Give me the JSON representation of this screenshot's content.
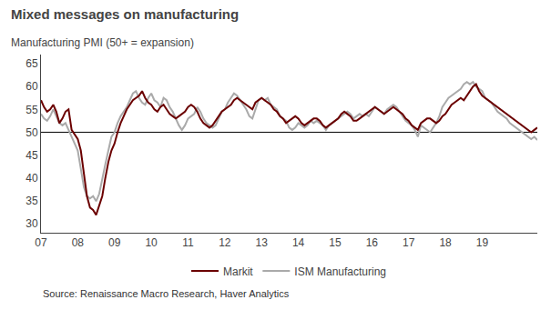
{
  "chart_data": {
    "type": "line",
    "title": "Mixed messages on manufacturing",
    "subtitle": "Manufacturing PMI (50+ = expansion)",
    "source": "Source: Renaissance Macro Research, Haver Analytics",
    "categories": [
      "07",
      null,
      null,
      null,
      null,
      null,
      null,
      null,
      null,
      null,
      null,
      null,
      "08",
      null,
      null,
      null,
      null,
      null,
      null,
      null,
      null,
      null,
      null,
      null,
      "09",
      null,
      null,
      null,
      null,
      null,
      null,
      null,
      null,
      null,
      null,
      null,
      "10",
      null,
      null,
      null,
      null,
      null,
      null,
      null,
      null,
      null,
      null,
      null,
      "11",
      null,
      null,
      null,
      null,
      null,
      null,
      null,
      null,
      null,
      null,
      null,
      "12",
      null,
      null,
      null,
      null,
      null,
      null,
      null,
      null,
      null,
      null,
      null,
      "13",
      null,
      null,
      null,
      null,
      null,
      null,
      null,
      null,
      null,
      null,
      null,
      "14",
      null,
      null,
      null,
      null,
      null,
      null,
      null,
      null,
      null,
      null,
      null,
      "15",
      null,
      null,
      null,
      null,
      null,
      null,
      null,
      null,
      null,
      null,
      null,
      "16",
      null,
      null,
      null,
      null,
      null,
      null,
      null,
      null,
      null,
      null,
      null,
      "17",
      null,
      null,
      null,
      null,
      null,
      null,
      null,
      null,
      null,
      null,
      null,
      "18",
      null,
      null,
      null,
      null,
      null,
      null,
      null,
      null,
      null,
      null,
      null,
      "19",
      null,
      null,
      null,
      null,
      null,
      null,
      null,
      null,
      null,
      null,
      null,
      null,
      null,
      null,
      null,
      null,
      null,
      null
    ],
    "series": [
      {
        "name": "ISM Manufacturing",
        "color": "#aaaaaa",
        "values": [
          54.0,
          53.0,
          52.5,
          53.5,
          55.0,
          53.5,
          52.0,
          51.5,
          52.0,
          50.5,
          49.0,
          47.5,
          46.0,
          42.0,
          38.0,
          36.0,
          35.5,
          36.0,
          34.9,
          36.5,
          40.0,
          43.0,
          46.0,
          49.0,
          50.0,
          52.0,
          53.5,
          54.5,
          55.5,
          57.0,
          58.5,
          59.0,
          57.5,
          56.5,
          56.0,
          57.5,
          58.5,
          57.0,
          56.5,
          55.5,
          57.5,
          57.0,
          55.5,
          54.5,
          53.0,
          51.5,
          50.5,
          51.5,
          53.0,
          53.5,
          54.0,
          55.5,
          54.5,
          53.0,
          52.0,
          51.5,
          51.0,
          51.5,
          53.0,
          54.5,
          55.0,
          56.5,
          57.5,
          58.5,
          58.0,
          57.0,
          56.0,
          55.0,
          53.5,
          53.0,
          55.0,
          57.0,
          57.5,
          57.0,
          57.5,
          56.0,
          55.5,
          55.0,
          53.5,
          53.0,
          52.5,
          51.0,
          50.5,
          51.0,
          52.0,
          51.5,
          51.0,
          51.5,
          52.5,
          52.0,
          52.5,
          52.0,
          51.5,
          50.5,
          51.5,
          52.0,
          52.5,
          53.0,
          53.5,
          54.0,
          54.5,
          54.0,
          53.0,
          53.5,
          54.0,
          53.5,
          54.0,
          53.5,
          54.5,
          55.5,
          55.0,
          54.5,
          54.0,
          55.0,
          55.5,
          56.0,
          55.5,
          54.5,
          53.5,
          52.5,
          52.0,
          51.5,
          50.5,
          49.0,
          51.5,
          51.0,
          50.5,
          50.0,
          51.0,
          52.0,
          53.5,
          55.5,
          56.5,
          57.5,
          58.0,
          58.5,
          59.0,
          59.5,
          60.5,
          61.0,
          60.5,
          61.0,
          60.0,
          59.5,
          59.0,
          57.5,
          57.0,
          56.5,
          55.5,
          54.5,
          54.0,
          53.5,
          53.0,
          52.0,
          51.5,
          51.0,
          50.5,
          50.0,
          49.5,
          49.0,
          48.5,
          49.0,
          48.3
        ]
      },
      {
        "name": "Markit",
        "color": "#6B0000",
        "values": [
          57.0,
          55.5,
          54.5,
          55.0,
          56.0,
          54.5,
          52.0,
          53.0,
          54.5,
          55.0,
          50.5,
          49.5,
          48.5,
          46.0,
          41.0,
          36.0,
          33.5,
          33.0,
          31.9,
          34.0,
          36.0,
          40.0,
          43.5,
          46.0,
          47.5,
          50.0,
          52.0,
          53.5,
          55.0,
          56.0,
          57.0,
          57.5,
          58.0,
          59.0,
          57.5,
          56.5,
          56.0,
          55.0,
          54.5,
          55.5,
          56.0,
          55.0,
          54.0,
          53.5,
          53.0,
          53.5,
          54.0,
          54.5,
          55.5,
          56.0,
          55.5,
          54.5,
          53.0,
          52.0,
          51.5,
          51.0,
          51.5,
          52.5,
          53.5,
          54.5,
          55.0,
          55.5,
          56.0,
          57.0,
          57.5,
          57.0,
          56.5,
          56.0,
          55.5,
          55.0,
          56.5,
          57.0,
          57.5,
          57.0,
          56.5,
          56.0,
          55.0,
          54.5,
          53.5,
          53.0,
          52.0,
          52.5,
          53.0,
          53.5,
          53.0,
          52.0,
          51.5,
          52.0,
          52.5,
          53.0,
          53.0,
          52.5,
          51.5,
          51.0,
          51.5,
          52.0,
          52.5,
          53.0,
          54.0,
          54.5,
          54.0,
          53.5,
          52.5,
          52.5,
          53.0,
          53.5,
          54.0,
          54.5,
          55.0,
          55.5,
          55.0,
          54.5,
          54.0,
          54.5,
          55.0,
          55.5,
          55.0,
          54.5,
          54.0,
          53.0,
          52.5,
          51.5,
          51.0,
          50.5,
          52.0,
          52.5,
          53.0,
          53.0,
          52.5,
          52.0,
          52.5,
          53.5,
          54.0,
          55.0,
          56.0,
          56.5,
          57.0,
          57.5,
          57.0,
          58.0,
          59.0,
          60.0,
          60.5,
          59.0,
          58.0,
          57.5,
          57.0,
          56.5,
          56.0,
          55.5,
          55.0,
          54.5,
          54.0,
          53.5,
          53.0,
          52.5,
          52.0,
          51.5,
          51.0,
          50.5,
          50.0,
          50.5,
          51.0
        ]
      }
    ],
    "reference_line": 50,
    "ylim": [
      28,
      67
    ],
    "yticks": [
      30,
      35,
      40,
      45,
      50,
      55,
      60,
      65
    ],
    "grid": false,
    "legend": "bottom"
  }
}
